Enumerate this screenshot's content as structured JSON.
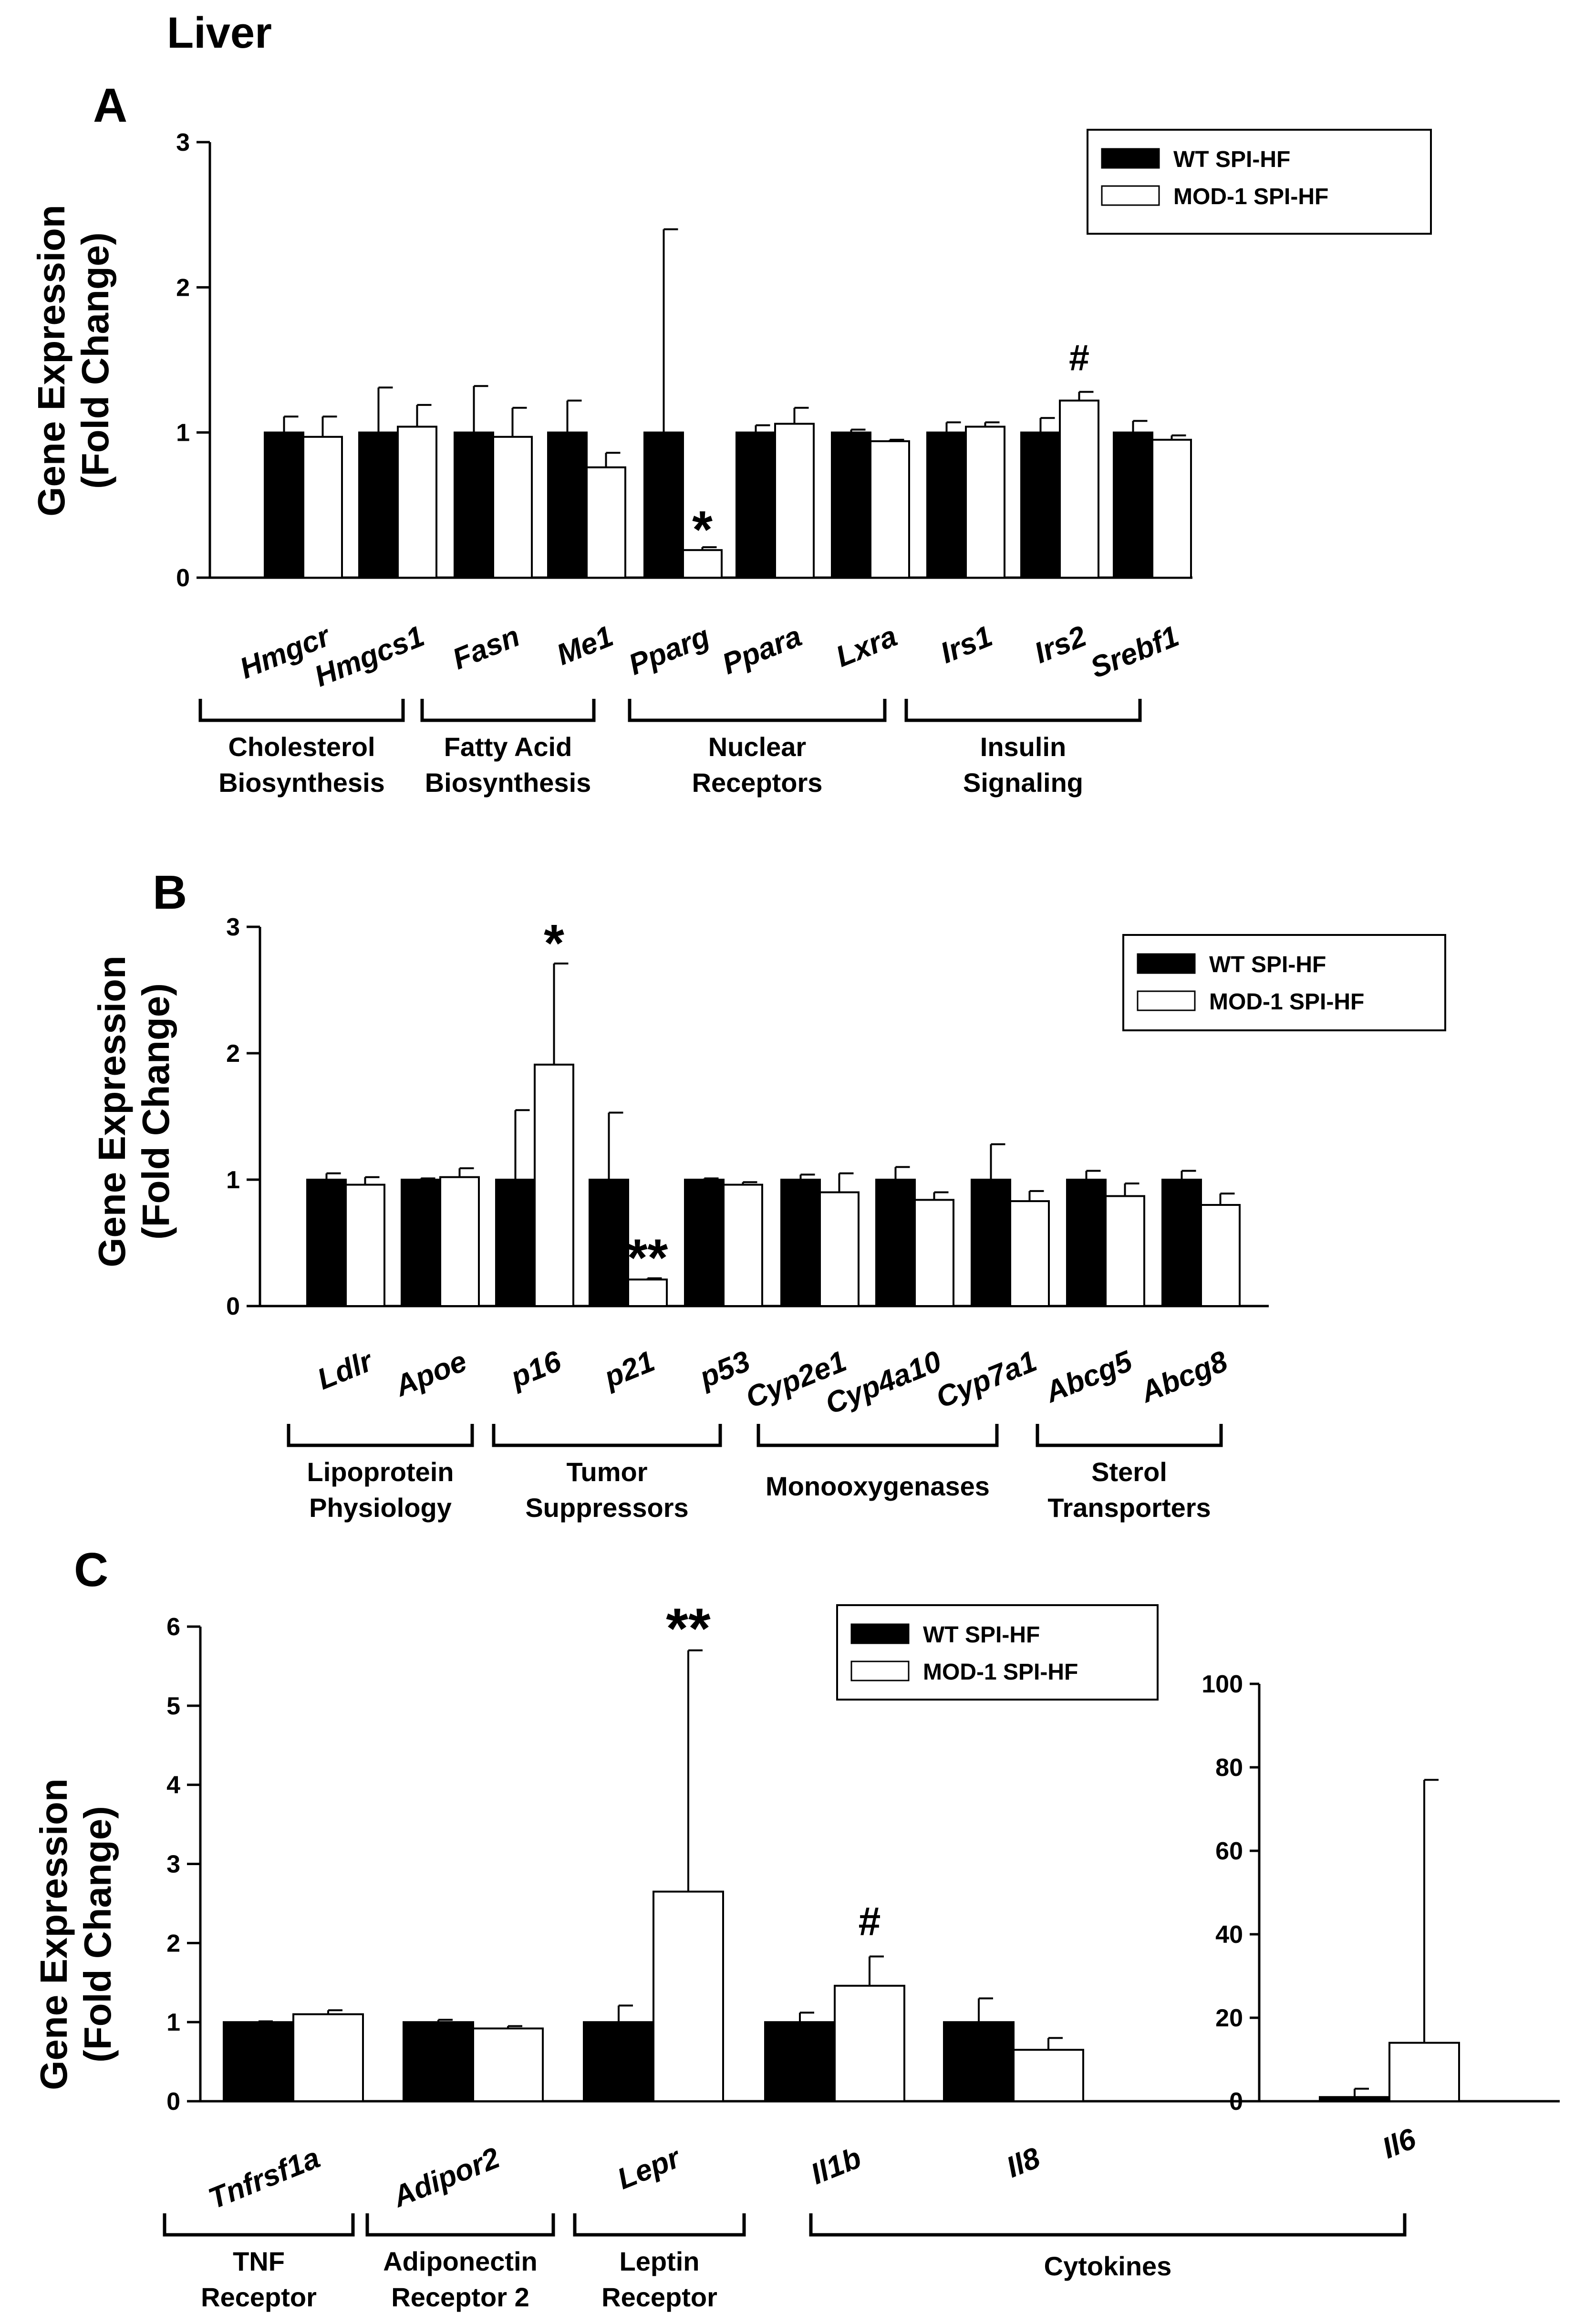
{
  "figure_title": "Liver",
  "colors": {
    "wt": "#000000",
    "mod": "#ffffff",
    "stroke": "#000000"
  },
  "legend": {
    "wt": "WT SPI-HF",
    "mod": "MOD-1 SPI-HF"
  },
  "chart_data": [
    {
      "panel": "A",
      "type": "bar",
      "ylabel_line1": "Gene Expression",
      "ylabel_line2": "(Fold Change)",
      "ylim": [
        0,
        3
      ],
      "yticks": [
        "0",
        "1",
        "2",
        "3"
      ],
      "categories": [
        "Hmgcr",
        "Hmgcs1",
        "Fasn",
        "Me1",
        "Pparg",
        "Ppara",
        "Lxra",
        "Irs1",
        "Irs2",
        "Srebf1"
      ],
      "series": [
        {
          "name": "WT SPI-HF",
          "values": [
            1.0,
            1.0,
            1.0,
            1.0,
            1.0,
            1.0,
            1.0,
            1.0,
            1.0,
            1.0
          ],
          "errors": [
            0.11,
            0.31,
            0.32,
            0.22,
            1.4,
            0.05,
            0.02,
            0.07,
            0.1,
            0.08
          ]
        },
        {
          "name": "MOD-1 SPI-HF",
          "values": [
            0.97,
            1.04,
            0.97,
            0.76,
            0.19,
            1.06,
            0.94,
            1.04,
            1.22,
            0.95
          ],
          "errors": [
            0.14,
            0.15,
            0.2,
            0.1,
            0.02,
            0.11,
            0.01,
            0.03,
            0.06,
            0.03
          ]
        }
      ],
      "annotations": [
        {
          "text": "*",
          "category": "Pparg",
          "series": "MOD-1 SPI-HF"
        },
        {
          "text": "#",
          "category": "Irs2",
          "series": "MOD-1 SPI-HF"
        }
      ],
      "groups": [
        {
          "line1": "Cholesterol",
          "line2": "Biosynthesis"
        },
        {
          "line1": "Fatty Acid",
          "line2": "Biosynthesis"
        },
        {
          "line1": "Nuclear",
          "line2": "Receptors"
        },
        {
          "line1": "Insulin",
          "line2": "Signaling"
        }
      ]
    },
    {
      "panel": "B",
      "type": "bar",
      "ylabel_line1": "Gene Expression",
      "ylabel_line2": "(Fold Change)",
      "ylim": [
        0,
        3
      ],
      "yticks": [
        "0",
        "1",
        "2",
        "3"
      ],
      "categories": [
        "Ldlr",
        "Apoe",
        "p16",
        "p21",
        "p53",
        "Cyp2e1",
        "Cyp4a10",
        "Cyp7a1",
        "Abcg5",
        "Abcg8"
      ],
      "series": [
        {
          "name": "WT SPI-HF",
          "values": [
            1.0,
            1.0,
            1.0,
            1.0,
            1.0,
            1.0,
            1.0,
            1.0,
            1.0,
            1.0
          ],
          "errors": [
            0.05,
            0.01,
            0.55,
            0.53,
            0.01,
            0.04,
            0.1,
            0.28,
            0.07,
            0.07
          ]
        },
        {
          "name": "MOD-1 SPI-HF",
          "values": [
            0.96,
            1.02,
            1.91,
            0.21,
            0.96,
            0.9,
            0.84,
            0.83,
            0.87,
            0.8
          ],
          "errors": [
            0.06,
            0.07,
            0.8,
            0.01,
            0.02,
            0.15,
            0.06,
            0.08,
            0.1,
            0.09
          ]
        }
      ],
      "annotations": [
        {
          "text": "*",
          "category": "p16",
          "series": "MOD-1 SPI-HF"
        },
        {
          "text": "**",
          "category": "p21",
          "series": "MOD-1 SPI-HF"
        }
      ],
      "groups": [
        {
          "line1": "Lipoprotein",
          "line2": "Physiology"
        },
        {
          "line1": "Tumor",
          "line2": "Suppressors"
        },
        {
          "line1": "Monooxygenases",
          "line2": ""
        },
        {
          "line1": "Sterol",
          "line2": "Transporters"
        }
      ]
    },
    {
      "panel": "C",
      "type": "bar",
      "ylabel_line1": "Gene Expression",
      "ylabel_line2": "(Fold Change)",
      "ylim": [
        0,
        6
      ],
      "yticks": [
        "0",
        "1",
        "2",
        "3",
        "4",
        "5",
        "6"
      ],
      "categories": [
        "Tnfrsf1a",
        "Adipor2",
        "Lepr",
        "Il1b",
        "Il8"
      ],
      "series": [
        {
          "name": "WT SPI-HF",
          "values": [
            1.0,
            1.0,
            1.0,
            1.0,
            1.0
          ],
          "errors": [
            0.01,
            0.03,
            0.21,
            0.12,
            0.3
          ]
        },
        {
          "name": "MOD-1 SPI-HF",
          "values": [
            1.1,
            0.92,
            2.65,
            1.46,
            0.65
          ],
          "errors": [
            0.05,
            0.03,
            3.05,
            0.37,
            0.15
          ]
        }
      ],
      "annotations": [
        {
          "text": "**",
          "category": "Lepr",
          "series": "MOD-1 SPI-HF"
        },
        {
          "text": "#",
          "category": "Il1b",
          "series": "MOD-1 SPI-HF"
        }
      ],
      "groups": [
        {
          "line1": "TNF",
          "line2": "Receptor"
        },
        {
          "line1": "Adiponectin",
          "line2": "Receptor 2"
        },
        {
          "line1": "Leptin",
          "line2": "Receptor"
        },
        {
          "line1": "Cytokines",
          "line2": ""
        }
      ]
    },
    {
      "panel": "C-inset",
      "type": "bar",
      "ylim": [
        0,
        100
      ],
      "yticks": [
        "0",
        "20",
        "40",
        "60",
        "80",
        "100"
      ],
      "categories": [
        "Il6"
      ],
      "series": [
        {
          "name": "WT SPI-HF",
          "values": [
            1.0
          ],
          "errors": [
            2.0
          ]
        },
        {
          "name": "MOD-1 SPI-HF",
          "values": [
            14.0
          ],
          "errors": [
            63.0
          ]
        }
      ]
    }
  ]
}
